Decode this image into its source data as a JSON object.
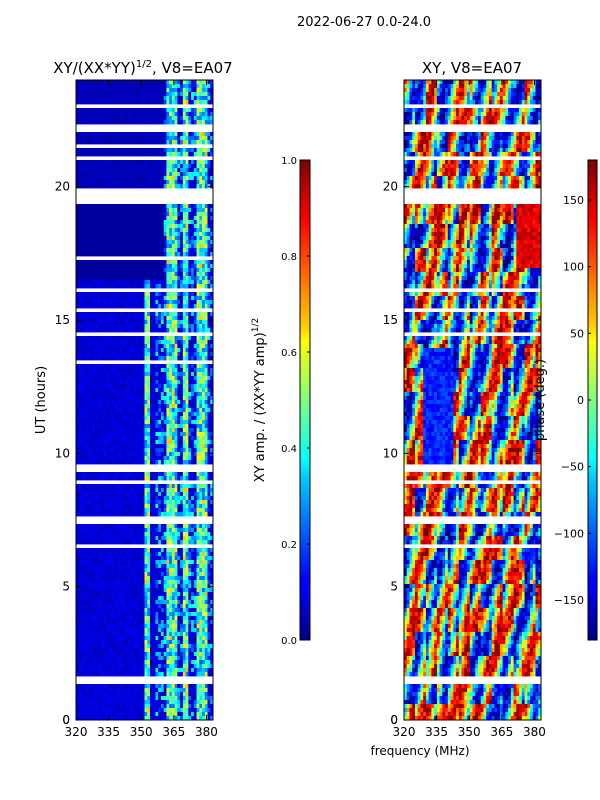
{
  "chart_data": [
    {
      "type": "heatmap",
      "suptitle": "2022-06-27 0.0-24.0",
      "title": "XY/(XX*YY)",
      "title_sup": "1/2",
      "title_suffix": ", V8=EA07",
      "ylabel": "UT (hours)",
      "xlim": [
        320,
        383
      ],
      "ylim": [
        0,
        24
      ],
      "xticks": [
        320,
        335,
        350,
        365,
        380
      ],
      "yticks": [
        0,
        5,
        10,
        15,
        20
      ],
      "white_gap_bands_hours": [
        [
          1.4,
          1.6
        ],
        [
          2.5,
          2.55
        ],
        [
          4.9,
          5.0
        ],
        [
          6.5,
          6.55
        ],
        [
          7.4,
          7.6
        ],
        [
          8.9,
          9.0
        ],
        [
          9.3,
          9.6
        ],
        [
          10.3,
          10.35
        ],
        [
          11.4,
          11.45
        ],
        [
          12.4,
          12.45
        ],
        [
          13.4,
          13.45
        ],
        [
          14.4,
          14.6
        ],
        [
          15.3,
          15.4
        ],
        [
          16.0,
          16.2
        ],
        [
          17.3,
          17.35
        ],
        [
          18.3,
          18.35
        ],
        [
          19.3,
          19.9
        ],
        [
          20.5,
          20.6
        ],
        [
          21.0,
          21.1
        ],
        [
          21.5,
          21.6
        ],
        [
          22.0,
          22.4
        ],
        [
          22.9,
          23.1
        ]
      ],
      "high_amplitude_channels_mhz": [
        [
          352,
          354
        ],
        [
          362,
          366
        ],
        [
          369,
          372
        ],
        [
          375,
          380
        ]
      ],
      "colorbar": {
        "label": "XY amp. / (XX*YY amp)",
        "label_sup": "1/2",
        "min": 0.0,
        "max": 1.0,
        "ticks": [
          "0.0",
          "0.2",
          "0.4",
          "0.6",
          "0.8",
          "1.0"
        ]
      }
    },
    {
      "type": "heatmap",
      "title": "XY, V8=EA07",
      "xlabel": "frequency (MHz)",
      "xlim": [
        320,
        383
      ],
      "ylim": [
        0,
        24
      ],
      "xticks": [
        320,
        335,
        350,
        365,
        380
      ],
      "yticks": [
        0,
        5,
        10,
        15,
        20
      ],
      "white_gap_bands_hours": [
        [
          1.4,
          1.6
        ],
        [
          2.5,
          2.55
        ],
        [
          4.9,
          5.0
        ],
        [
          6.5,
          6.55
        ],
        [
          7.4,
          7.6
        ],
        [
          8.9,
          9.0
        ],
        [
          9.3,
          9.6
        ],
        [
          14.4,
          14.6
        ],
        [
          15.3,
          15.4
        ],
        [
          16.0,
          16.2
        ],
        [
          19.3,
          19.9
        ],
        [
          20.5,
          20.6
        ],
        [
          21.0,
          21.1
        ],
        [
          22.0,
          22.4
        ],
        [
          22.9,
          23.1
        ]
      ],
      "colorbar": {
        "label": "phase (deg.)",
        "min": -180,
        "max": 180,
        "ticks": [
          "−150",
          "−100",
          "−50",
          "0",
          "50",
          "100",
          "150"
        ],
        "tick_values": [
          -150,
          -100,
          -50,
          0,
          50,
          100,
          150
        ]
      }
    }
  ],
  "colors": {
    "jet": [
      "#00007f",
      "#0000ff",
      "#007fff",
      "#00ffff",
      "#7fff7f",
      "#ffff00",
      "#ff7f00",
      "#ff0000",
      "#7f0000"
    ]
  }
}
